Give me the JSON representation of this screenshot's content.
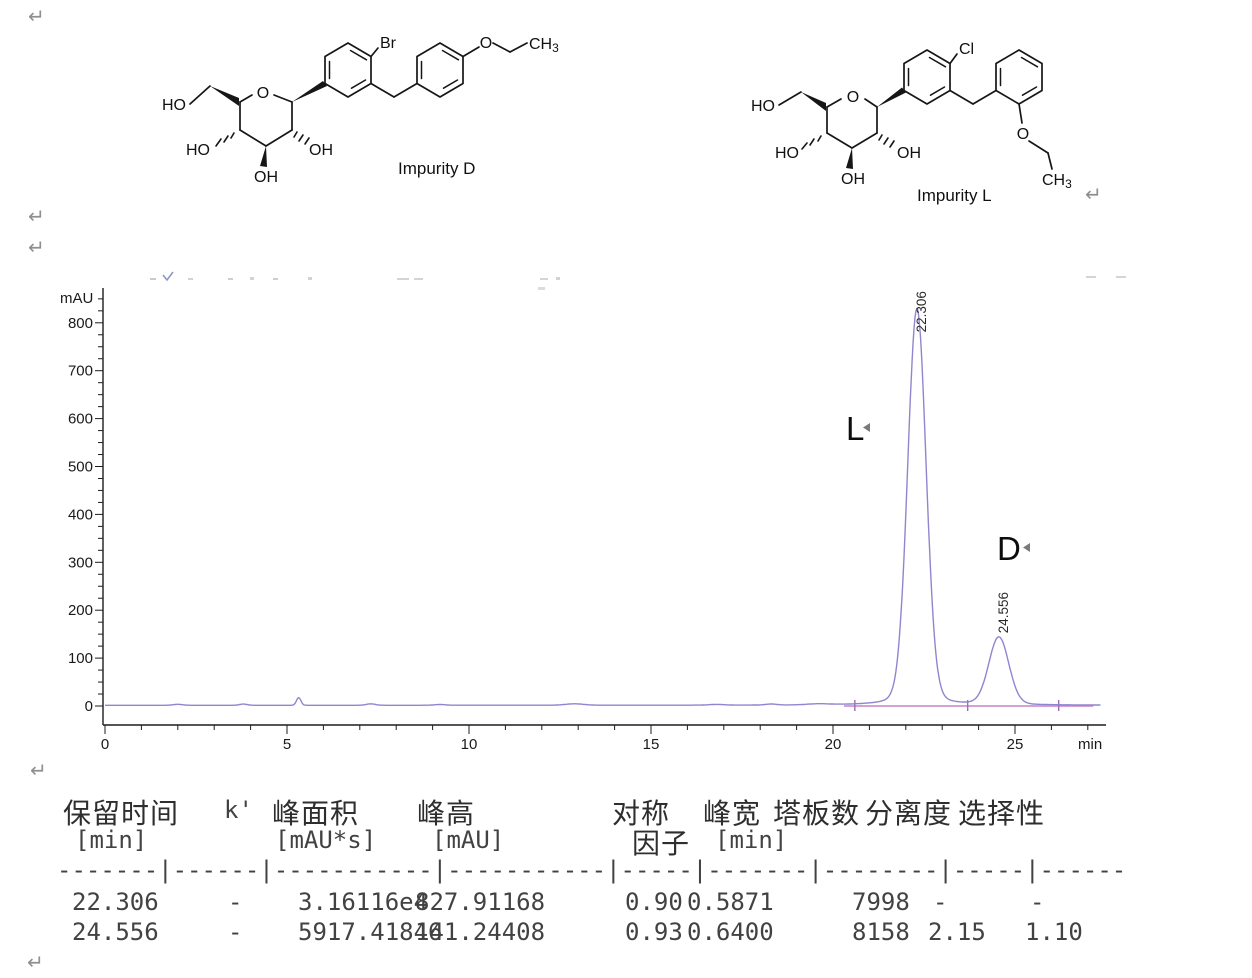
{
  "marks": {
    "return_glyph": "↵"
  },
  "structures": {
    "impurity_d": {
      "name": "Impurity D",
      "ho_top": "HO",
      "ring_oxygen": "O",
      "ho_left": "HO",
      "oh_right": "OH",
      "oh_bottom": "OH",
      "halogen": "Br",
      "ether_oxygen": "O",
      "methyl": "CH",
      "methyl_sub": "3"
    },
    "impurity_l": {
      "name": "Impurity L",
      "ho_top": "HO",
      "ring_oxygen": "O",
      "ho_left": "HO",
      "oh_right": "OH",
      "oh_bottom": "OH",
      "halogen": "Cl",
      "ether_oxygen": "O",
      "methyl": "CH",
      "methyl_sub": "3"
    }
  },
  "chart_data": {
    "type": "line",
    "title": "",
    "xlabel": "min",
    "ylabel": "mAU",
    "xlim": [
      0,
      27.4
    ],
    "ylim": [
      -45,
      870
    ],
    "x_ticks": [
      0,
      5,
      10,
      15,
      20,
      25
    ],
    "y_ticks": [
      0,
      100,
      200,
      300,
      400,
      500,
      600,
      700,
      800
    ],
    "x_minor_step": 1,
    "y_minor_step": 25,
    "grid": false,
    "peaks": [
      {
        "label": "22.306",
        "annotation": "L",
        "rt_min": 22.306,
        "height_mau": 827.91168,
        "sigma_min": 0.249
      },
      {
        "label": "24.556",
        "annotation": "D",
        "rt_min": 24.556,
        "height_mau": 141.24408,
        "sigma_min": 0.272
      }
    ],
    "baseline_mau": 1.5,
    "minor_features": [
      {
        "rt_min": 5.32,
        "height_mau": 16,
        "sigma_min": 0.06
      },
      {
        "rt_min": 2.0,
        "height_mau": 2,
        "sigma_min": 0.12
      },
      {
        "rt_min": 3.8,
        "height_mau": 2.5,
        "sigma_min": 0.1
      },
      {
        "rt_min": 7.3,
        "height_mau": 3,
        "sigma_min": 0.12
      },
      {
        "rt_min": 9.2,
        "height_mau": 1.5,
        "sigma_min": 0.15
      },
      {
        "rt_min": 12.9,
        "height_mau": 3,
        "sigma_min": 0.25
      },
      {
        "rt_min": 16.8,
        "height_mau": 1.5,
        "sigma_min": 0.2
      },
      {
        "rt_min": 18.3,
        "height_mau": 2,
        "sigma_min": 0.15
      },
      {
        "rt_min": 19.6,
        "height_mau": 2,
        "sigma_min": 0.3
      }
    ],
    "integration": {
      "start_min": 20.3,
      "end_min": 27.15,
      "delimiter_ticks_min": [
        20.6,
        23.7,
        26.2
      ]
    },
    "colors": {
      "signal": "#8f86cf",
      "integration_baseline": "#c983c9",
      "delimiter": "#9b6ab8",
      "axis": "#1c1c1c"
    }
  },
  "table": {
    "headers": [
      {
        "l1": "保留时间",
        "l2": "[min]"
      },
      {
        "l1": "k'",
        "l2": ""
      },
      {
        "l1": "峰面积",
        "l2": "[mAU*s]"
      },
      {
        "l1": "峰高",
        "l2": "[mAU]"
      },
      {
        "l1": "对称",
        "l2": "因子"
      },
      {
        "l1": "峰宽",
        "l2": "[min]"
      },
      {
        "l1": "塔板数",
        "l2": ""
      },
      {
        "l1": "分离度",
        "l2": ""
      },
      {
        "l1": "选择性",
        "l2": ""
      }
    ],
    "separator": "-------|------|-----------|-----------|-----|-------|--------|-----|------",
    "rows": [
      [
        "22.306",
        "-",
        "3.16116e4",
        "827.91168",
        "0.90",
        "0.5871",
        "7998",
        "-",
        "-"
      ],
      [
        "24.556",
        "-",
        "5917.41846",
        "141.24408",
        "0.93",
        "0.6400",
        "8158",
        "2.15",
        "1.10"
      ]
    ]
  }
}
